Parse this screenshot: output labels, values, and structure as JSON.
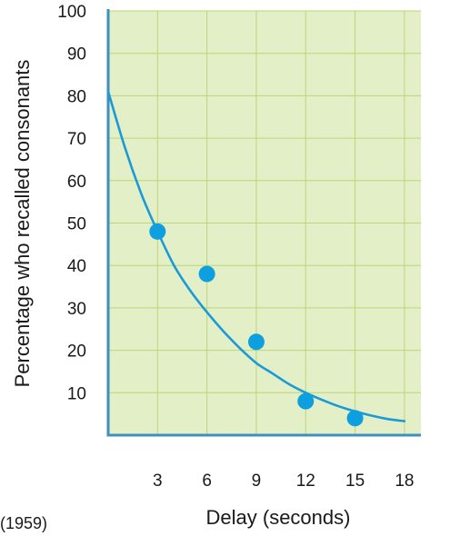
{
  "colors": {
    "plot_background": "#e2efc7",
    "grid": "#bcd677",
    "axis_frame": "#3f8fbf",
    "curve": "#1a9bd8",
    "points": "#0e9fe0",
    "text": "#1a1a1a"
  },
  "caption_fragment": "(1959)",
  "chart_data": {
    "type": "scatter",
    "xlabel": "Delay (seconds)",
    "ylabel": "Percentage who recalled consonants",
    "xlim": [
      0,
      19
    ],
    "ylim": [
      0,
      100
    ],
    "x_ticks": [
      3,
      6,
      9,
      12,
      15,
      18
    ],
    "y_ticks": [
      10,
      20,
      30,
      40,
      50,
      60,
      70,
      80,
      90,
      100
    ],
    "grid": true,
    "series": [
      {
        "type": "scatter",
        "x": [
          3,
          6,
          9,
          12,
          15
        ],
        "y": [
          48,
          38,
          22,
          8,
          4
        ]
      },
      {
        "type": "line",
        "x": [
          0,
          1,
          2,
          3,
          4,
          5,
          6,
          7,
          8,
          9,
          10,
          11,
          12,
          13,
          14,
          15,
          16,
          17,
          18
        ],
        "y": [
          81,
          68,
          57,
          48,
          40,
          34,
          29,
          24.5,
          20.5,
          17,
          14.5,
          12,
          10,
          8.3,
          6.8,
          5.6,
          4.6,
          3.8,
          3.3
        ]
      }
    ]
  }
}
